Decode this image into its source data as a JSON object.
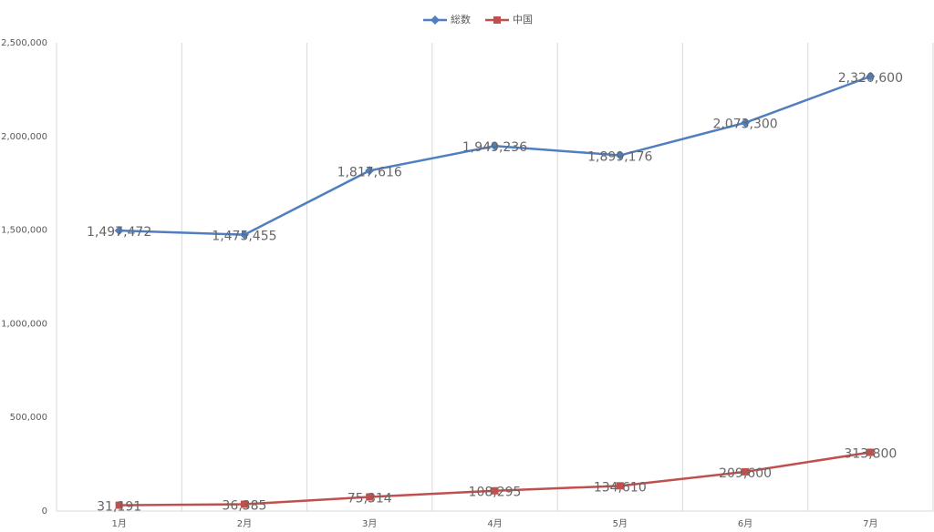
{
  "chart_data": {
    "type": "line",
    "categories": [
      "1月",
      "2月",
      "3月",
      "4月",
      "5月",
      "6月",
      "7月"
    ],
    "series": [
      {
        "name": "総数",
        "color": "#4f7fbf",
        "marker": "diamond",
        "values": [
          1497472,
          1475455,
          1817616,
          1949236,
          1899176,
          2073300,
          2320600
        ],
        "value_labels": [
          "1,497,472",
          "1,475,455",
          "1,817,616",
          "1,949,236",
          "1,899,176",
          "2,073,300",
          "2,320,600"
        ]
      },
      {
        "name": "中国",
        "color": "#c0504d",
        "marker": "square",
        "values": [
          31191,
          36385,
          75314,
          108295,
          134610,
          209600,
          313800
        ],
        "value_labels": [
          "31,191",
          "36,385",
          "75,314",
          "108,295",
          "134,610",
          "209,600",
          "313,800"
        ]
      }
    ],
    "ylim": [
      0,
      2500000
    ],
    "yticks": [
      0,
      {
        "value": 500000,
        "label": "500,000"
      },
      {
        "value": 1000000,
        "label": "1,000,000"
      },
      {
        "value": 1500000,
        "label": "1,500,000"
      },
      {
        "value": 2000000,
        "label": "2,000,000"
      },
      {
        "value": 2500000,
        "label": "2,500,000"
      }
    ],
    "grid": "x",
    "legend": "top"
  }
}
